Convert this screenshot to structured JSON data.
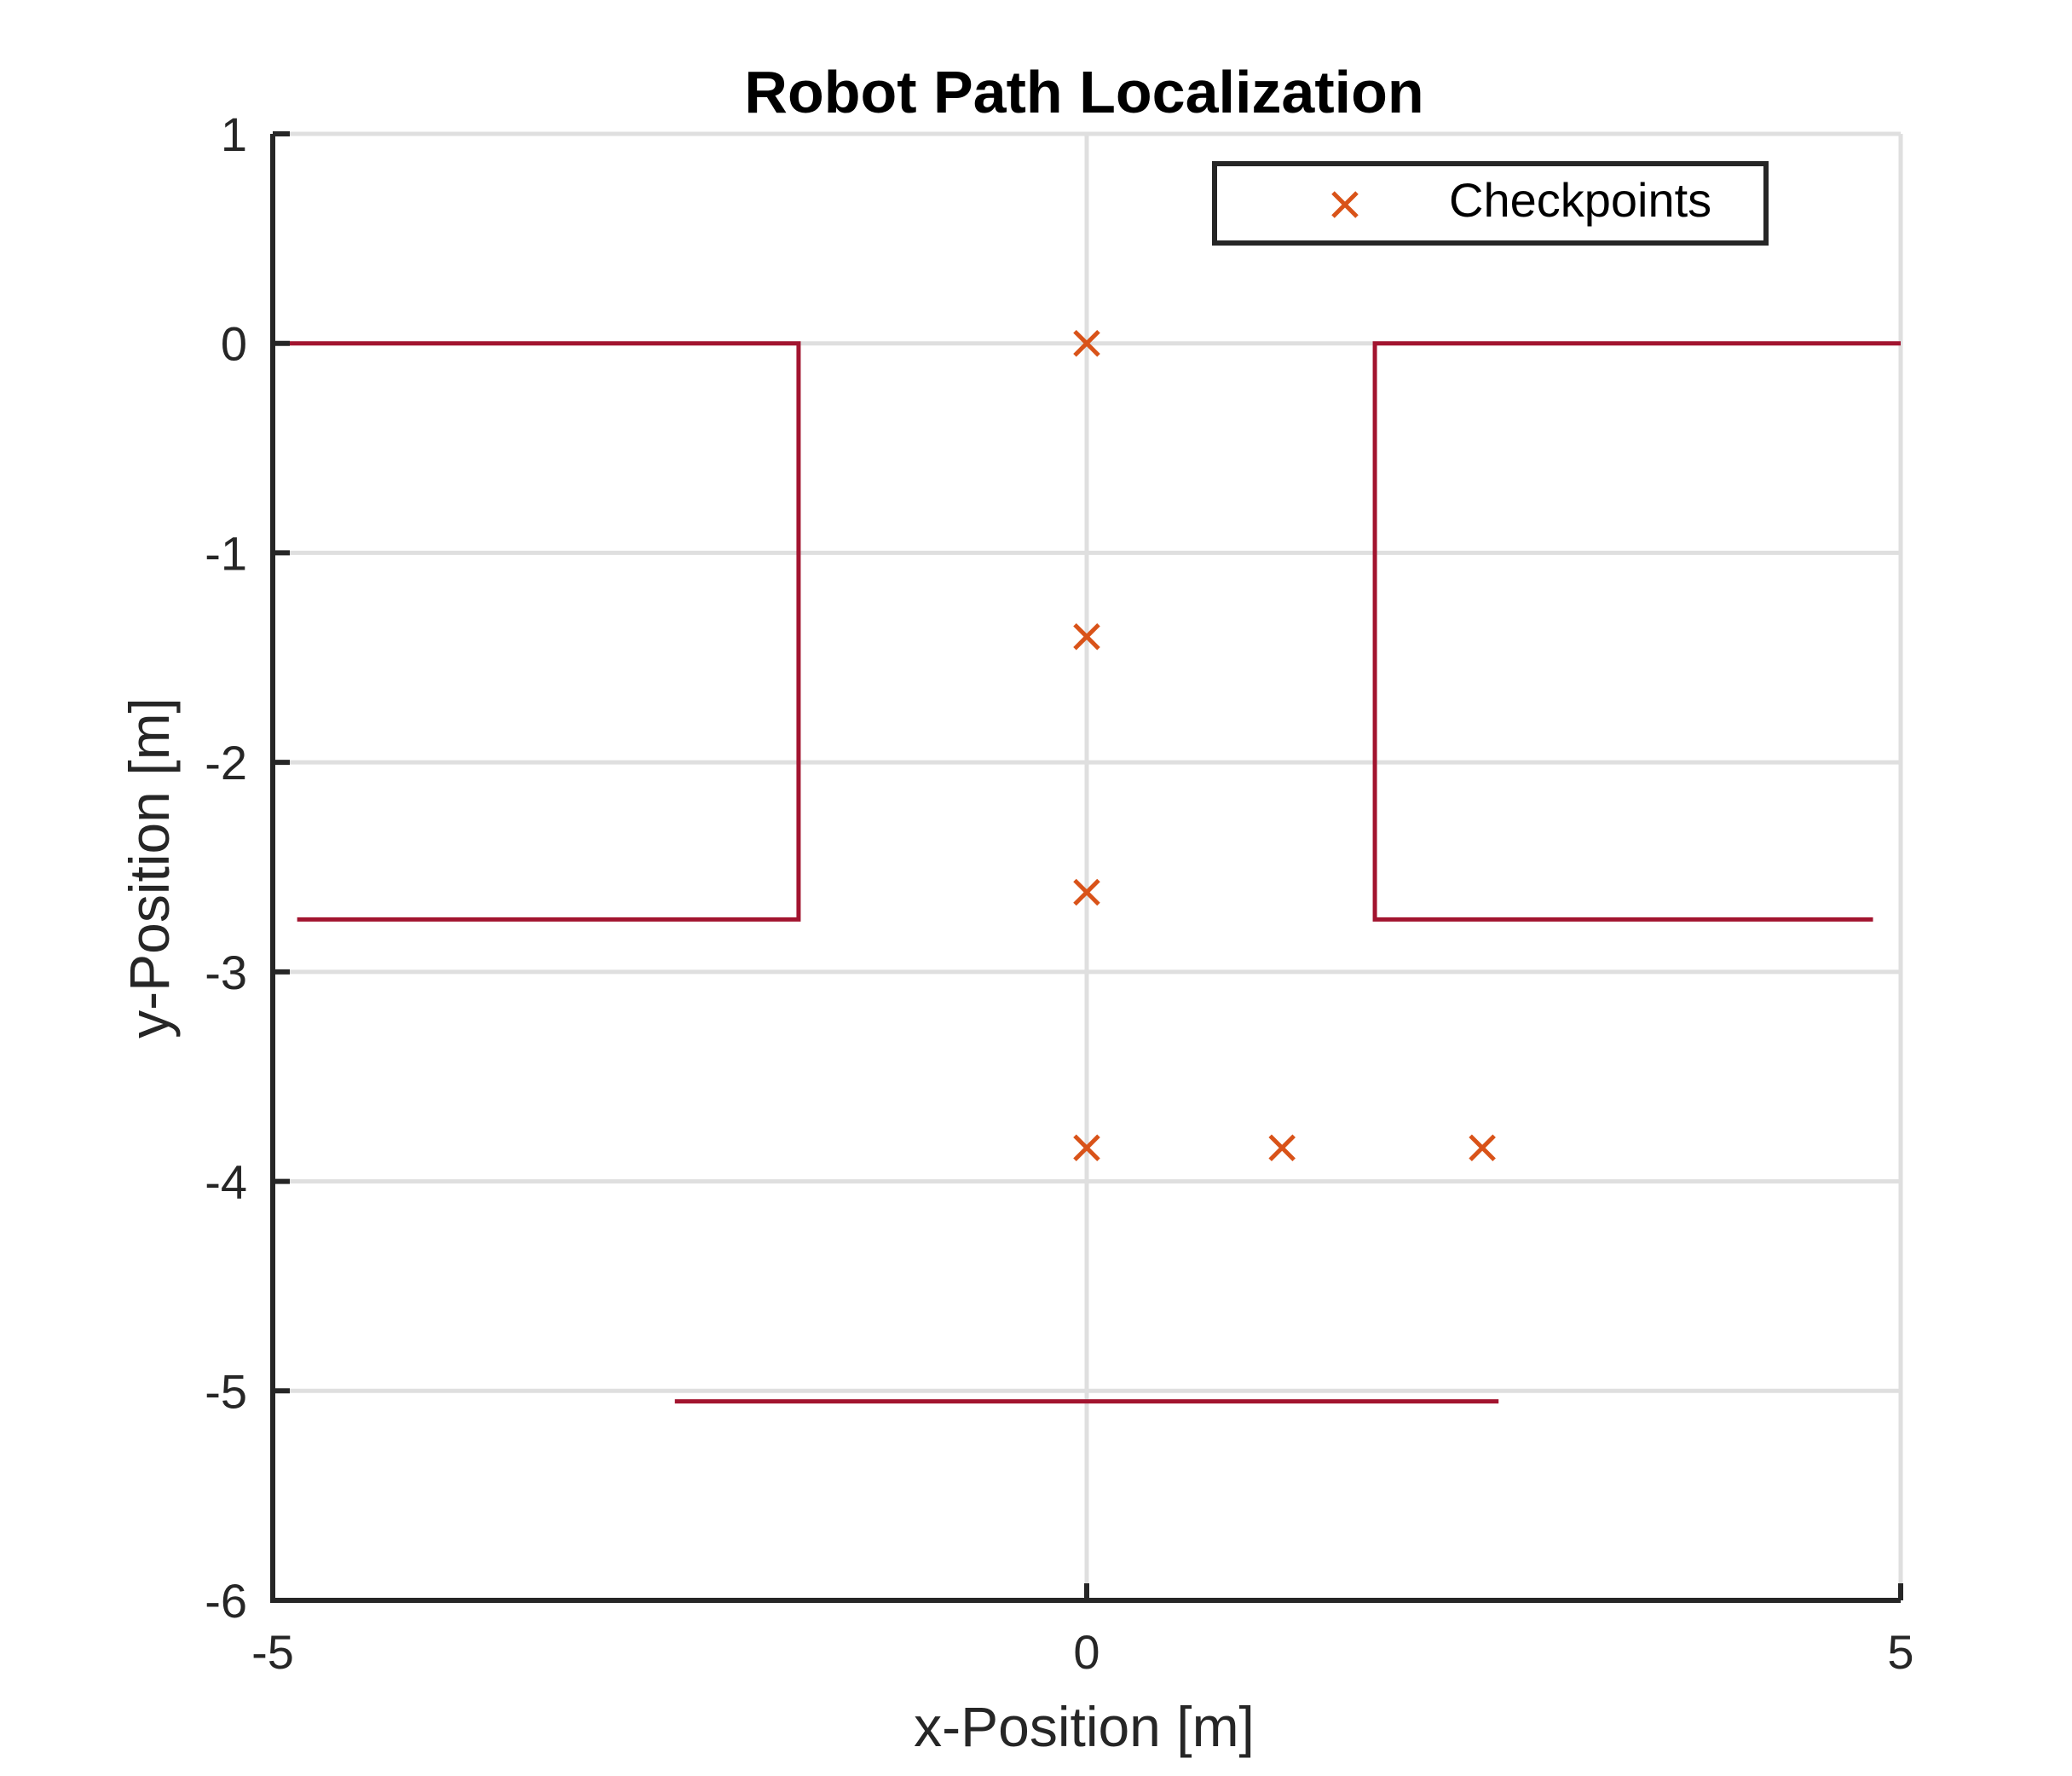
{
  "chart_data": {
    "type": "line",
    "title": "Robot Path Localization",
    "xlabel": "x-Position [m]",
    "ylabel": "y-Position [m]",
    "xlim": [
      -5,
      5
    ],
    "ylim": [
      -6,
      1
    ],
    "xticks": [
      -5,
      0,
      5
    ],
    "yticks": [
      1,
      0,
      -1,
      -2,
      -3,
      -4,
      -5,
      -6
    ],
    "xtick_labels": [
      "-5",
      "0",
      "5"
    ],
    "ytick_labels": [
      "1",
      "0",
      "-1",
      "-2",
      "-3",
      "-4",
      "-5",
      "-6"
    ],
    "grid": true,
    "legend": {
      "position": "top-right",
      "entries": [
        "Checkpoints"
      ]
    },
    "walls": [
      {
        "x": [
          -5,
          -1.77,
          -1.77,
          -4.85
        ],
        "y": [
          0,
          0,
          -2.75,
          -2.75
        ]
      },
      {
        "x": [
          5,
          1.77,
          1.77,
          4.83
        ],
        "y": [
          0,
          0,
          -2.75,
          -2.75
        ]
      },
      {
        "x": [
          -2.53,
          2.53
        ],
        "y": [
          -5.05,
          -5.05
        ]
      }
    ],
    "series": [
      {
        "name": "Checkpoints",
        "marker": "x",
        "x": [
          0,
          0,
          0,
          0,
          1.2,
          2.43
        ],
        "y": [
          0,
          -1.4,
          -2.62,
          -3.84,
          -3.84,
          -3.84
        ]
      }
    ],
    "colors": {
      "walls": "#a2142f",
      "checkpoints": "#d95319",
      "axes": "#262626",
      "grid": "#dfdfdf"
    }
  }
}
